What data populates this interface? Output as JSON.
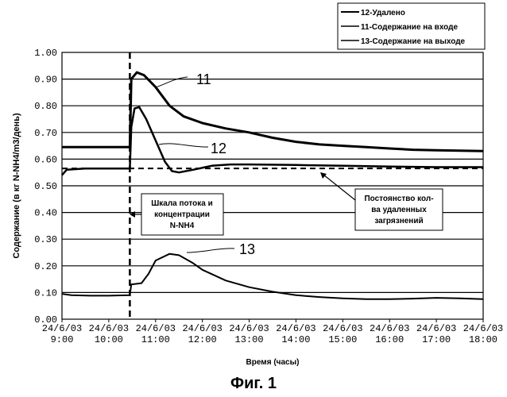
{
  "chart_data": {
    "type": "line",
    "title": "",
    "xlabel": "Время (часы)",
    "ylabel": "Содержание (в кг N-NH4/m3/день)",
    "ylim": [
      0,
      1.0
    ],
    "xlim": [
      9,
      18
    ],
    "yticks": [
      "0.00",
      "0.10",
      "0.20",
      "0.30",
      "0.40",
      "0.50",
      "0.60",
      "0.70",
      "0.80",
      "0.90",
      "1.00"
    ],
    "xticks": [
      {
        "x": 9,
        "date": "24/6/03",
        "time": "9:00"
      },
      {
        "x": 10,
        "date": "24/6/03",
        "time": "10:00"
      },
      {
        "x": 11,
        "date": "24/6/03",
        "time": "11:00"
      },
      {
        "x": 12,
        "date": "24/6/03",
        "time": "12:00"
      },
      {
        "x": 13,
        "date": "24/6/03",
        "time": "13:00"
      },
      {
        "x": 14,
        "date": "24/6/03",
        "time": "14:00"
      },
      {
        "x": 15,
        "date": "24/6/03",
        "time": "15:00"
      },
      {
        "x": 16,
        "date": "24/6/03",
        "time": "16:00"
      },
      {
        "x": 17,
        "date": "24/6/03",
        "time": "17:00"
      },
      {
        "x": 18,
        "date": "24/6/03",
        "time": "18:00"
      }
    ],
    "grid": "horizontal",
    "legend_position": "top-right",
    "series": [
      {
        "name": "12-Удалено",
        "label": "12",
        "points": [
          [
            9,
            0.54
          ],
          [
            9.1,
            0.56
          ],
          [
            9.5,
            0.565
          ],
          [
            10,
            0.565
          ],
          [
            10.45,
            0.565
          ],
          [
            10.48,
            0.72
          ],
          [
            10.55,
            0.79
          ],
          [
            10.65,
            0.795
          ],
          [
            10.8,
            0.75
          ],
          [
            11.0,
            0.67
          ],
          [
            11.2,
            0.59
          ],
          [
            11.35,
            0.555
          ],
          [
            11.5,
            0.55
          ],
          [
            11.8,
            0.56
          ],
          [
            12.2,
            0.575
          ],
          [
            12.6,
            0.58
          ],
          [
            13,
            0.58
          ],
          [
            14,
            0.578
          ],
          [
            15,
            0.575
          ],
          [
            16,
            0.572
          ],
          [
            17,
            0.57
          ],
          [
            18,
            0.57
          ]
        ]
      },
      {
        "name": "11-Содержание на входе",
        "label": "11",
        "points": [
          [
            9,
            0.645
          ],
          [
            9.5,
            0.645
          ],
          [
            10,
            0.645
          ],
          [
            10.45,
            0.645
          ],
          [
            10.48,
            0.9
          ],
          [
            10.6,
            0.925
          ],
          [
            10.75,
            0.915
          ],
          [
            11.0,
            0.87
          ],
          [
            11.3,
            0.8
          ],
          [
            11.6,
            0.76
          ],
          [
            12,
            0.735
          ],
          [
            12.5,
            0.715
          ],
          [
            13,
            0.7
          ],
          [
            13.5,
            0.68
          ],
          [
            14,
            0.665
          ],
          [
            14.5,
            0.655
          ],
          [
            15,
            0.65
          ],
          [
            15.5,
            0.645
          ],
          [
            16,
            0.64
          ],
          [
            16.5,
            0.635
          ],
          [
            17,
            0.633
          ],
          [
            18,
            0.63
          ]
        ]
      },
      {
        "name": "13-Содержание на выходе",
        "label": "13",
        "points": [
          [
            9,
            0.095
          ],
          [
            9.2,
            0.09
          ],
          [
            9.6,
            0.088
          ],
          [
            10,
            0.088
          ],
          [
            10.45,
            0.09
          ],
          [
            10.48,
            0.13
          ],
          [
            10.7,
            0.135
          ],
          [
            10.85,
            0.17
          ],
          [
            11.0,
            0.22
          ],
          [
            11.3,
            0.245
          ],
          [
            11.5,
            0.24
          ],
          [
            11.8,
            0.21
          ],
          [
            12,
            0.185
          ],
          [
            12.5,
            0.145
          ],
          [
            13,
            0.12
          ],
          [
            13.5,
            0.103
          ],
          [
            14,
            0.09
          ],
          [
            14.5,
            0.083
          ],
          [
            15,
            0.078
          ],
          [
            15.5,
            0.075
          ],
          [
            16,
            0.075
          ],
          [
            16.5,
            0.077
          ],
          [
            17,
            0.08
          ],
          [
            17.5,
            0.078
          ],
          [
            18,
            0.075
          ]
        ]
      }
    ],
    "reference_line": {
      "y": 0.565
    },
    "event_line": {
      "x": 10.45
    },
    "annotations": [
      {
        "id": "flow_scale",
        "lines": [
          "Шкала потока и",
          "концентрации",
          "N-NH4"
        ]
      },
      {
        "id": "constancy",
        "lines": [
          "Постоянство кол-",
          "ва удаленных",
          "загрязнений"
        ]
      }
    ]
  },
  "caption": "Фиг. 1"
}
